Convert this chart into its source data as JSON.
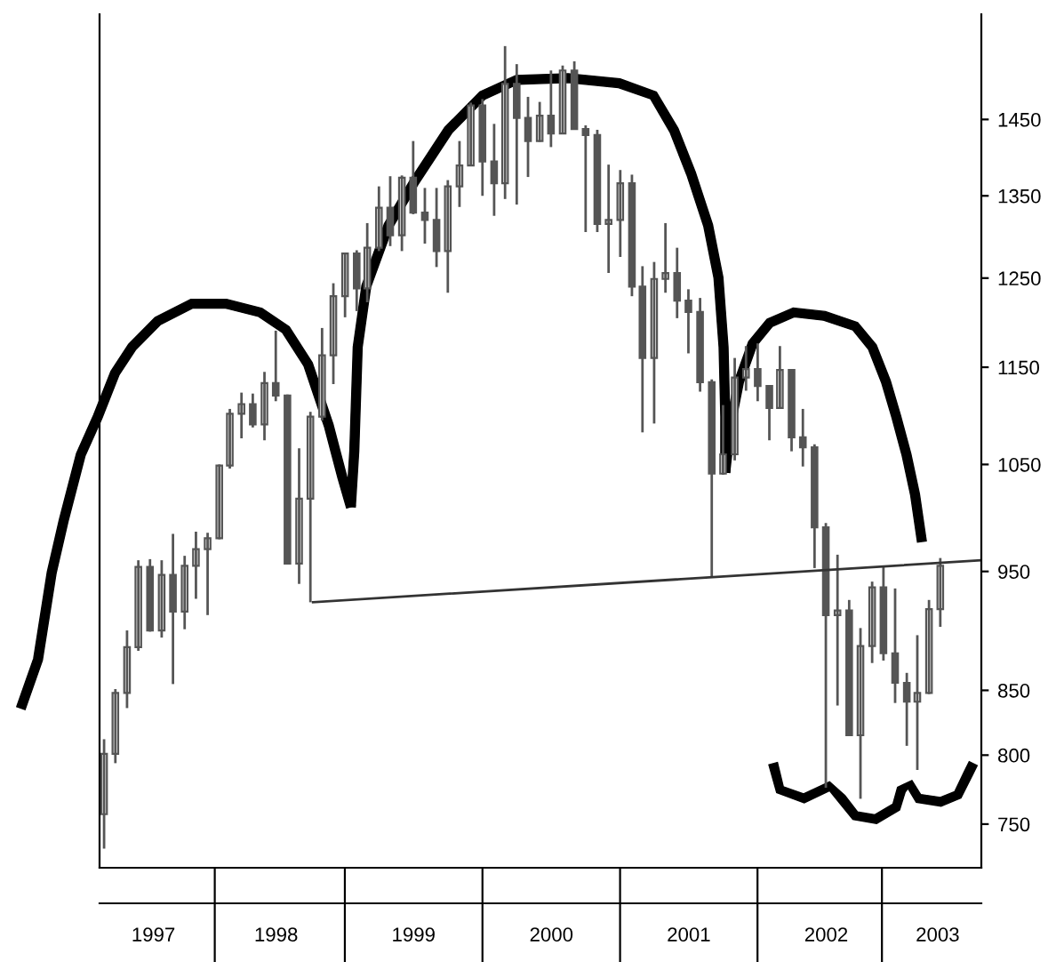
{
  "chart_data": {
    "type": "candlestick",
    "x": [
      "1997-04",
      "1997-05",
      "1997-06",
      "1997-07",
      "1997-08",
      "1997-09",
      "1997-10",
      "1997-11",
      "1997-12",
      "1998-01",
      "1998-02",
      "1998-03",
      "1998-04",
      "1998-05",
      "1998-06",
      "1998-07",
      "1998-08",
      "1998-09",
      "1998-10",
      "1998-11",
      "1998-12",
      "1999-01",
      "1999-02",
      "1999-03",
      "1999-04",
      "1999-05",
      "1999-06",
      "1999-07",
      "1999-08",
      "1999-09",
      "1999-10",
      "1999-11",
      "1999-12",
      "2000-01",
      "2000-02",
      "2000-03",
      "2000-04",
      "2000-05",
      "2000-06",
      "2000-07",
      "2000-08",
      "2000-09",
      "2000-10",
      "2000-11",
      "2000-12",
      "2001-01",
      "2001-02",
      "2001-03",
      "2001-04",
      "2001-05",
      "2001-06",
      "2001-07",
      "2001-08",
      "2001-09",
      "2001-10",
      "2001-11",
      "2001-12",
      "2002-01",
      "2002-02",
      "2002-03",
      "2002-04",
      "2002-05",
      "2002-06",
      "2002-07",
      "2002-08",
      "2002-09",
      "2002-10",
      "2002-11",
      "2002-12",
      "2003-01",
      "2003-02",
      "2003-03",
      "2003-04",
      "2003-05"
    ],
    "ohlc": [
      [
        757,
        812,
        733,
        801
      ],
      [
        801,
        851,
        794,
        848
      ],
      [
        848,
        899,
        836,
        885
      ],
      [
        885,
        960,
        882,
        954
      ],
      [
        954,
        961,
        898,
        899
      ],
      [
        899,
        960,
        893,
        947
      ],
      [
        947,
        984,
        855,
        915
      ],
      [
        915,
        964,
        900,
        955
      ],
      [
        955,
        986,
        926,
        970
      ],
      [
        970,
        985,
        912,
        980
      ],
      [
        980,
        1050,
        979,
        1049
      ],
      [
        1049,
        1106,
        1046,
        1101
      ],
      [
        1101,
        1123,
        1076,
        1111
      ],
      [
        1111,
        1122,
        1087,
        1090
      ],
      [
        1090,
        1145,
        1074,
        1133
      ],
      [
        1133,
        1190,
        1114,
        1120
      ],
      [
        1120,
        1121,
        957,
        957
      ],
      [
        957,
        1066,
        939,
        1017
      ],
      [
        1017,
        1103,
        923,
        1098
      ],
      [
        1098,
        1193,
        1094,
        1163
      ],
      [
        1163,
        1244,
        1132,
        1229
      ],
      [
        1229,
        1280,
        1205,
        1279
      ],
      [
        1279,
        1283,
        1212,
        1238
      ],
      [
        1238,
        1316,
        1222,
        1286
      ],
      [
        1286,
        1362,
        1282,
        1335
      ],
      [
        1335,
        1375,
        1288,
        1301
      ],
      [
        1301,
        1376,
        1282,
        1373
      ],
      [
        1373,
        1421,
        1327,
        1329
      ],
      [
        1329,
        1360,
        1291,
        1320
      ],
      [
        1320,
        1360,
        1263,
        1282
      ],
      [
        1282,
        1370,
        1233,
        1362
      ],
      [
        1362,
        1421,
        1336,
        1389
      ],
      [
        1389,
        1473,
        1388,
        1469
      ],
      [
        1469,
        1478,
        1350,
        1394
      ],
      [
        1394,
        1444,
        1325,
        1366
      ],
      [
        1366,
        1553,
        1346,
        1499
      ],
      [
        1499,
        1527,
        1339,
        1452
      ],
      [
        1452,
        1481,
        1374,
        1421
      ],
      [
        1421,
        1474,
        1420,
        1455
      ],
      [
        1455,
        1518,
        1413,
        1431
      ],
      [
        1431,
        1525,
        1431,
        1518
      ],
      [
        1518,
        1531,
        1436,
        1437
      ],
      [
        1437,
        1442,
        1305,
        1429
      ],
      [
        1429,
        1436,
        1305,
        1315
      ],
      [
        1315,
        1390,
        1256,
        1320
      ],
      [
        1320,
        1383,
        1275,
        1366
      ],
      [
        1366,
        1377,
        1229,
        1240
      ],
      [
        1240,
        1264,
        1082,
        1160
      ],
      [
        1160,
        1269,
        1091,
        1249
      ],
      [
        1249,
        1316,
        1233,
        1256
      ],
      [
        1256,
        1286,
        1204,
        1224
      ],
      [
        1224,
        1237,
        1165,
        1211
      ],
      [
        1211,
        1227,
        1124,
        1134
      ],
      [
        1134,
        1137,
        945,
        1041
      ],
      [
        1041,
        1110,
        1040,
        1060
      ],
      [
        1060,
        1160,
        1054,
        1139
      ],
      [
        1139,
        1173,
        1125,
        1148
      ],
      [
        1148,
        1176,
        1114,
        1130
      ],
      [
        1130,
        1131,
        1074,
        1107
      ],
      [
        1107,
        1173,
        1106,
        1147
      ],
      [
        1147,
        1147,
        1063,
        1077
      ],
      [
        1077,
        1106,
        1048,
        1067
      ],
      [
        1067,
        1070,
        953,
        990
      ],
      [
        990,
        994,
        776,
        912
      ],
      [
        912,
        965,
        838,
        916
      ],
      [
        916,
        925,
        815,
        815
      ],
      [
        815,
        901,
        768,
        886
      ],
      [
        886,
        941,
        872,
        936
      ],
      [
        936,
        954,
        874,
        880
      ],
      [
        880,
        935,
        840,
        856
      ],
      [
        856,
        864,
        807,
        841
      ],
      [
        841,
        895,
        789,
        848
      ],
      [
        848,
        925,
        847,
        917
      ],
      [
        917,
        962,
        902,
        955
      ]
    ],
    "color": "#555555",
    "series": [
      {
        "type": "line",
        "x": [
          "1998-10-08",
          "2003-08-18"
        ],
        "values": [
          923,
          960
        ],
        "color": "#333333"
      }
    ],
    "log": true,
    "xlim": [
      "1997-03-20",
      "2003-08-18"
    ],
    "xticks": [
      {
        "value": "1997-08-10",
        "label": "1997"
      },
      {
        "value": "1998-07-02",
        "label": "1998"
      },
      {
        "value": "1999-07-02",
        "label": "1999"
      },
      {
        "value": "2000-07-02",
        "label": "2000"
      },
      {
        "value": "2001-07-02",
        "label": "2001"
      },
      {
        "value": "2002-07-02",
        "label": "2002"
      },
      {
        "value": "2003-04-24",
        "label": "2003"
      }
    ],
    "ylim": [
      720,
      1600
    ],
    "yticks": [
      750,
      800,
      850,
      950,
      1050,
      1150,
      1250,
      1350,
      1450
    ],
    "grid": false,
    "legend": false
  }
}
